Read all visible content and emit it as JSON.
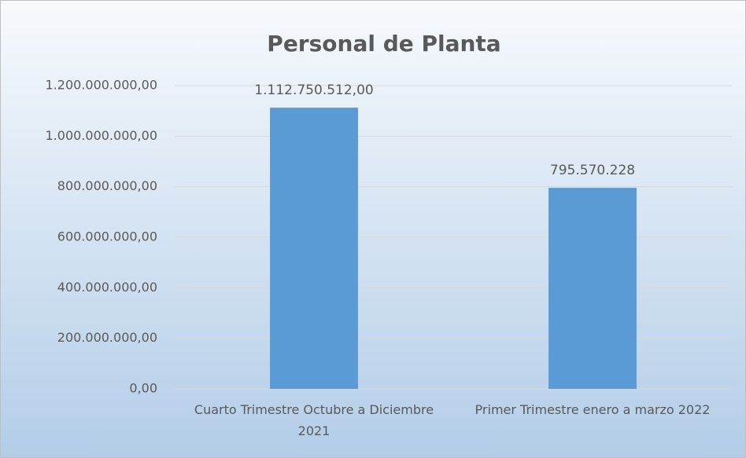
{
  "chart_data": {
    "type": "bar",
    "title": "Personal de Planta",
    "categories": [
      "Cuarto Trimestre Octubre a Diciembre  2021",
      "Primer Trimestre enero a marzo 2022"
    ],
    "values": [
      1112750512,
      795570228
    ],
    "value_labels": [
      "1.112.750.512,00",
      "795.570.228"
    ],
    "color": "#5b9bd5",
    "ylim": [
      0,
      1200000000
    ],
    "yticks": [
      {
        "value": 0,
        "label": "0,00"
      },
      {
        "value": 200000000,
        "label": "200.000.000,00"
      },
      {
        "value": 400000000,
        "label": "400.000.000,00"
      },
      {
        "value": 600000000,
        "label": "600.000.000,00"
      },
      {
        "value": 800000000,
        "label": "800.000.000,00"
      },
      {
        "value": 1000000000,
        "label": "1.000.000.000,00"
      },
      {
        "value": 1200000000,
        "label": "1.200.000.000,00"
      }
    ],
    "grid": true
  }
}
